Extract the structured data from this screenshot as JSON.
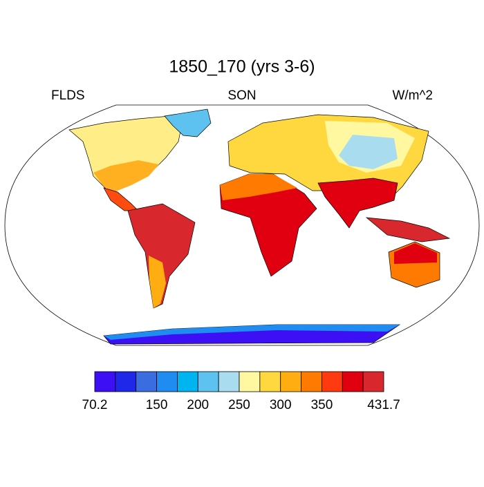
{
  "title": "1850_170 (yrs 3-6)",
  "left_label": "FLDS",
  "center_label": "SON",
  "right_label": "W/m^2",
  "colorbar": {
    "colors": [
      "#3d0ff5",
      "#1f28e8",
      "#3a6ee0",
      "#1e8cf0",
      "#00b4f0",
      "#5ec2f0",
      "#aadcf0",
      "#fff8a0",
      "#ffd840",
      "#ffad10",
      "#ff7a00",
      "#ff3a10",
      "#e00010",
      "#d8282e"
    ],
    "boundaries": [
      70.2,
      null,
      null,
      150,
      null,
      200,
      null,
      250,
      null,
      300,
      null,
      350,
      null,
      null,
      431.7
    ]
  }
}
